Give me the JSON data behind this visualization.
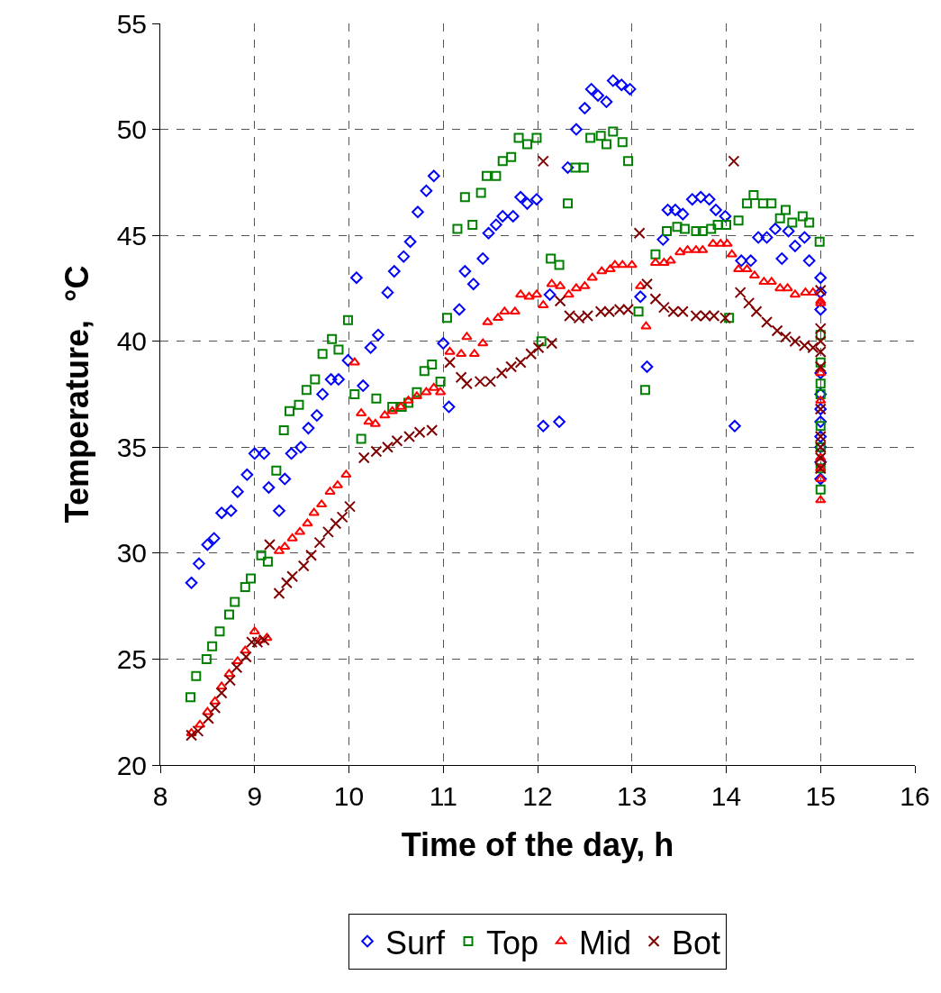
{
  "chart_data": {
    "type": "scatter",
    "xlabel": "Time of the day, h",
    "ylabel": "Temperature,  °C",
    "xlim": [
      8,
      16
    ],
    "xticks": [
      8,
      9,
      10,
      11,
      12,
      13,
      14,
      15,
      16
    ],
    "ylim": [
      20,
      55
    ],
    "yticks": [
      20,
      25,
      30,
      35,
      40,
      45,
      50,
      55
    ],
    "grid": true,
    "legend": "bottom",
    "series": [
      {
        "name": "Surf",
        "color": "#0000ff",
        "marker": "diamond",
        "x": [
          8.33,
          8.41,
          8.5,
          8.57,
          8.65,
          8.75,
          8.82,
          8.92,
          9.0,
          9.1,
          9.15,
          9.26,
          9.32,
          9.39,
          9.49,
          9.57,
          9.66,
          9.72,
          9.81,
          9.89,
          9.99,
          10.08,
          10.15,
          10.23,
          10.31,
          10.41,
          10.48,
          10.58,
          10.65,
          10.73,
          10.82,
          10.9,
          11.0,
          11.06,
          11.17,
          11.23,
          11.32,
          11.42,
          11.48,
          11.56,
          11.63,
          11.74,
          11.82,
          11.89,
          11.99,
          12.06,
          12.13,
          12.23,
          12.32,
          12.41,
          12.5,
          12.57,
          12.64,
          12.73,
          12.8,
          12.89,
          12.98,
          13.09,
          13.16,
          13.33,
          13.38,
          13.46,
          13.54,
          13.64,
          13.73,
          13.82,
          13.89,
          13.99,
          14.09,
          14.16,
          14.26,
          14.34,
          14.43,
          14.52,
          14.59,
          14.66,
          14.73,
          14.83,
          14.88,
          15.0,
          15.0,
          15.0,
          15.0,
          15.0,
          15.0,
          15.0,
          15.0,
          15.0,
          15.0,
          15.0
        ],
        "values": [
          28.6,
          29.5,
          30.4,
          30.7,
          31.9,
          32.0,
          32.9,
          33.7,
          34.7,
          34.7,
          33.1,
          32.0,
          33.5,
          34.7,
          35.0,
          35.9,
          36.5,
          37.5,
          38.2,
          38.2,
          39.1,
          43.0,
          37.9,
          39.7,
          40.3,
          42.3,
          43.3,
          44.0,
          44.7,
          46.1,
          47.1,
          47.8,
          39.9,
          36.9,
          41.5,
          43.3,
          42.7,
          43.9,
          45.1,
          45.5,
          45.9,
          45.9,
          46.8,
          46.5,
          46.7,
          36.0,
          42.2,
          36.2,
          48.2,
          50.0,
          51.0,
          51.9,
          51.6,
          51.3,
          52.3,
          52.1,
          51.9,
          42.1,
          38.8,
          44.8,
          46.2,
          46.2,
          46.0,
          46.7,
          46.8,
          46.7,
          46.2,
          45.9,
          36.0,
          43.8,
          43.8,
          44.9,
          44.9,
          45.3,
          43.9,
          45.2,
          44.5,
          44.9,
          43.8,
          43.0,
          42.3,
          41.5,
          38.5,
          37.5,
          36.8,
          36.2,
          35.5,
          35.0,
          34.3,
          33.5
        ]
      },
      {
        "name": "Top",
        "color": "#008000",
        "marker": "square",
        "x": [
          8.32,
          8.38,
          8.49,
          8.55,
          8.63,
          8.73,
          8.79,
          8.9,
          8.96,
          9.07,
          9.14,
          9.23,
          9.31,
          9.37,
          9.47,
          9.55,
          9.64,
          9.72,
          9.82,
          9.89,
          9.99,
          10.06,
          10.13,
          10.29,
          10.46,
          10.56,
          10.63,
          10.72,
          10.8,
          10.88,
          10.97,
          11.04,
          11.15,
          11.23,
          11.31,
          11.4,
          11.46,
          11.56,
          11.63,
          11.72,
          11.8,
          11.89,
          11.99,
          12.04,
          12.14,
          12.23,
          12.32,
          12.4,
          12.49,
          12.56,
          12.67,
          12.73,
          12.8,
          12.9,
          12.96,
          13.07,
          13.14,
          13.25,
          13.37,
          13.48,
          13.56,
          13.68,
          13.75,
          13.84,
          13.91,
          14.0,
          14.03,
          14.13,
          14.22,
          14.29,
          14.39,
          14.48,
          14.57,
          14.63,
          14.7,
          14.81,
          14.88,
          14.99,
          15.0,
          15.0,
          15.0,
          15.0,
          15.0,
          15.0,
          15.0,
          15.0
        ],
        "values": [
          23.2,
          24.2,
          25.0,
          25.6,
          26.3,
          27.1,
          27.7,
          28.4,
          28.8,
          29.9,
          29.6,
          33.9,
          35.8,
          36.7,
          37.0,
          37.7,
          38.2,
          39.4,
          40.1,
          39.6,
          41.0,
          37.5,
          35.4,
          37.3,
          36.9,
          36.9,
          37.1,
          37.6,
          38.6,
          38.9,
          38.1,
          41.1,
          45.3,
          46.8,
          45.5,
          47.0,
          47.8,
          47.8,
          48.5,
          48.7,
          49.6,
          49.3,
          49.6,
          40.0,
          43.9,
          43.6,
          46.5,
          48.2,
          48.2,
          49.6,
          49.7,
          49.3,
          49.9,
          49.4,
          48.5,
          41.4,
          37.7,
          44.1,
          45.2,
          45.4,
          45.3,
          45.2,
          45.2,
          45.3,
          45.5,
          45.5,
          41.1,
          45.7,
          46.5,
          46.9,
          46.5,
          46.5,
          45.8,
          46.2,
          45.6,
          45.9,
          45.6,
          44.7,
          40.3,
          39.0,
          38.0,
          37.5,
          36.0,
          35.0,
          34.0,
          33.0
        ]
      },
      {
        "name": "Mid",
        "color": "#ff0000",
        "marker": "triangle",
        "x": [
          8.33,
          8.42,
          8.5,
          8.58,
          8.65,
          8.73,
          8.82,
          8.9,
          9.0,
          9.06,
          9.13,
          9.26,
          9.32,
          9.4,
          9.48,
          9.56,
          9.63,
          9.71,
          9.8,
          9.88,
          9.97,
          10.06,
          10.13,
          10.21,
          10.28,
          10.38,
          10.46,
          10.55,
          10.63,
          10.72,
          10.82,
          10.9,
          10.97,
          11.07,
          11.19,
          11.25,
          11.33,
          11.42,
          11.47,
          11.58,
          11.65,
          11.76,
          11.82,
          11.91,
          11.99,
          12.06,
          12.15,
          12.24,
          12.33,
          12.41,
          12.5,
          12.58,
          12.68,
          12.77,
          12.82,
          12.9,
          13.0,
          13.09,
          13.15,
          13.25,
          13.34,
          13.41,
          13.51,
          13.59,
          13.68,
          13.75,
          13.86,
          13.94,
          14.01,
          14.06,
          14.13,
          14.22,
          14.3,
          14.4,
          14.48,
          14.57,
          14.65,
          14.73,
          14.84,
          14.92,
          15.0,
          15.0,
          15.0,
          15.0,
          15.0,
          15.0,
          15.0,
          15.0
        ],
        "values": [
          21.5,
          21.9,
          22.5,
          23.0,
          23.7,
          24.3,
          24.9,
          25.4,
          26.3,
          25.9,
          26.0,
          30.1,
          30.3,
          30.7,
          31.0,
          31.4,
          31.9,
          32.3,
          32.9,
          33.2,
          33.7,
          39.0,
          36.6,
          36.2,
          36.1,
          36.5,
          36.7,
          36.9,
          37.2,
          37.4,
          37.6,
          37.8,
          37.6,
          39.5,
          39.4,
          40.2,
          39.4,
          39.9,
          40.9,
          41.1,
          41.4,
          41.4,
          42.2,
          42.1,
          42.2,
          41.7,
          42.7,
          42.6,
          42.2,
          42.5,
          42.6,
          43.0,
          43.3,
          43.4,
          43.6,
          43.6,
          43.6,
          42.6,
          40.7,
          43.7,
          43.7,
          43.8,
          44.2,
          44.3,
          44.3,
          44.3,
          44.6,
          44.6,
          44.6,
          44.1,
          43.4,
          43.4,
          43.1,
          42.8,
          42.8,
          42.5,
          42.5,
          42.2,
          42.3,
          42.3,
          41.9,
          41.8,
          38.5,
          37.2,
          34.5,
          34.0,
          33.5,
          32.5
        ]
      },
      {
        "name": "Bot",
        "color": "#800000",
        "marker": "cross",
        "x": [
          8.33,
          8.4,
          8.51,
          8.58,
          8.65,
          8.74,
          8.81,
          8.91,
          8.97,
          9.03,
          9.1,
          9.16,
          9.26,
          9.34,
          9.4,
          9.52,
          9.6,
          9.69,
          9.78,
          9.86,
          9.93,
          10.01,
          10.16,
          10.29,
          10.41,
          10.51,
          10.64,
          10.75,
          10.88,
          11.07,
          11.19,
          11.25,
          11.39,
          11.5,
          11.62,
          11.72,
          11.82,
          11.93,
          12.01,
          12.06,
          12.15,
          12.24,
          12.34,
          12.44,
          12.53,
          12.67,
          12.76,
          12.87,
          12.96,
          13.08,
          13.16,
          13.25,
          13.34,
          13.44,
          13.54,
          13.68,
          13.78,
          13.87,
          13.99,
          14.08,
          14.15,
          14.24,
          14.32,
          14.43,
          14.54,
          14.63,
          14.73,
          14.83,
          14.92,
          15.0,
          15.0,
          15.0,
          15.0,
          15.0,
          15.0,
          15.0,
          15.0,
          15.0,
          15.0
        ],
        "values": [
          21.4,
          21.6,
          22.2,
          22.7,
          23.4,
          24.0,
          24.6,
          25.1,
          25.8,
          25.8,
          25.9,
          30.4,
          28.1,
          28.6,
          28.9,
          29.4,
          29.9,
          30.5,
          31.0,
          31.4,
          31.7,
          32.2,
          34.5,
          34.8,
          35.0,
          35.3,
          35.5,
          35.7,
          35.8,
          39.0,
          38.3,
          38.0,
          38.1,
          38.1,
          38.5,
          38.8,
          39.0,
          39.4,
          39.7,
          48.5,
          39.9,
          41.9,
          41.2,
          41.1,
          41.2,
          41.4,
          41.4,
          41.5,
          41.5,
          45.1,
          42.7,
          42.0,
          41.6,
          41.4,
          41.4,
          41.2,
          41.2,
          41.2,
          41.1,
          48.5,
          42.3,
          41.8,
          41.4,
          40.9,
          40.5,
          40.2,
          40.0,
          39.8,
          39.7,
          42.4,
          40.6,
          40.0,
          39.5,
          38.8,
          36.8,
          35.5,
          35.0,
          34.5,
          34.0
        ]
      }
    ]
  }
}
